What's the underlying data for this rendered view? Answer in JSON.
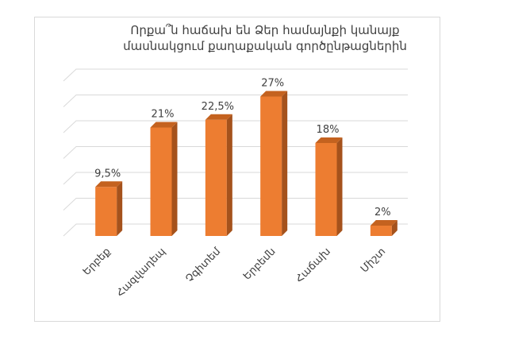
{
  "chart_data": {
    "type": "bar",
    "title_lines": [
      "Որքա՞ն հաճախ են Ձեր համայնքի կանայք",
      "մասնակցում քաղաքական գործընթացներին"
    ],
    "categories": [
      "Երբեք",
      "Հազվադեպ",
      "Չգիտեմ",
      "Երբեմն",
      "Հաճախ",
      "Միշտ"
    ],
    "values": [
      9.5,
      21,
      22.5,
      27,
      18,
      2
    ],
    "data_labels": [
      "9,5%",
      "21%",
      "22,5%",
      "27%",
      "18%",
      "2%"
    ],
    "ylim": [
      0,
      30
    ],
    "y_gridlines": [
      0,
      5,
      10,
      15,
      20,
      25,
      30
    ],
    "grid": true,
    "legend": "none",
    "style": "3d-column",
    "bar_color": "#ed7d31",
    "bar_side_color": "#a5521c",
    "bar_top_color": "#c4621f",
    "grid_color": "#d9d9d9"
  }
}
